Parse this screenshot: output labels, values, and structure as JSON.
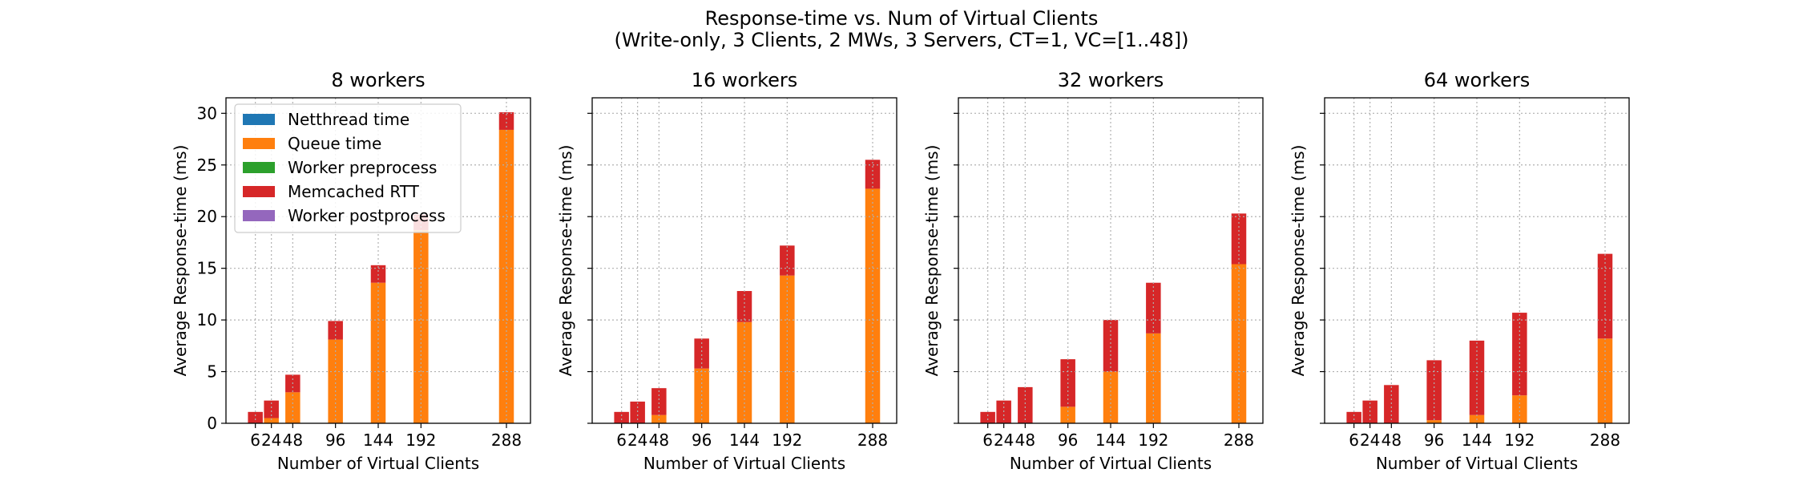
{
  "figure": {
    "title_line1": "Response-time vs. Num of Virtual Clients",
    "title_line2": "(Write-only, 3 Clients, 2 MWs, 3 Servers, CT=1, VC=[1..48])"
  },
  "colors": {
    "netthread": "#1f77b4",
    "queue": "#ff7f0e",
    "preprocess": "#2ca02c",
    "memcached": "#d62728",
    "postprocess": "#9467bd"
  },
  "chart_data": [
    {
      "type": "bar",
      "stacked": true,
      "title": "8 workers",
      "xlabel": "Number of Virtual Clients",
      "ylabel": "Average Response-time (ms)",
      "x": [
        6,
        24,
        48,
        96,
        144,
        192,
        288
      ],
      "x_tick_labels": [
        "6",
        "24",
        "48",
        "96",
        "144",
        "192",
        "288"
      ],
      "ylim": [
        0,
        31.5
      ],
      "yticks": [
        0,
        5,
        10,
        15,
        20,
        25,
        30
      ],
      "show_y_tick_labels": true,
      "grid": true,
      "legend": {
        "placement": "upper-left",
        "entries": [
          "Netthread time",
          "Queue time",
          "Worker preprocess",
          "Memcached RTT",
          "Worker postprocess"
        ]
      },
      "series": [
        {
          "name": "Netthread time",
          "values": [
            0.0,
            0.0,
            0.0,
            0.0,
            0.0,
            0.0,
            0.0
          ]
        },
        {
          "name": "Queue time",
          "values": [
            0.0,
            0.5,
            3.0,
            8.1,
            13.6,
            18.7,
            28.4
          ]
        },
        {
          "name": "Worker preprocess",
          "values": [
            0.0,
            0.0,
            0.0,
            0.0,
            0.0,
            0.0,
            0.0
          ]
        },
        {
          "name": "Memcached RTT",
          "values": [
            1.1,
            1.7,
            1.7,
            1.8,
            1.7,
            1.5,
            1.7
          ]
        },
        {
          "name": "Worker postprocess",
          "values": [
            0.0,
            0.0,
            0.0,
            0.0,
            0.0,
            0.0,
            0.0
          ]
        }
      ]
    },
    {
      "type": "bar",
      "stacked": true,
      "title": "16 workers",
      "xlabel": "Number of Virtual Clients",
      "ylabel": "Average Response-time (ms)",
      "x": [
        6,
        24,
        48,
        96,
        144,
        192,
        288
      ],
      "x_tick_labels": [
        "6",
        "24",
        "48",
        "96",
        "144",
        "192",
        "288"
      ],
      "ylim": [
        0,
        31.5
      ],
      "yticks": [
        0,
        5,
        10,
        15,
        20,
        25,
        30
      ],
      "show_y_tick_labels": false,
      "grid": true,
      "series": [
        {
          "name": "Netthread time",
          "values": [
            0.0,
            0.0,
            0.0,
            0.0,
            0.0,
            0.0,
            0.0
          ]
        },
        {
          "name": "Queue time",
          "values": [
            0.0,
            0.0,
            0.8,
            5.3,
            9.8,
            14.3,
            22.7
          ]
        },
        {
          "name": "Worker preprocess",
          "values": [
            0.0,
            0.0,
            0.0,
            0.0,
            0.0,
            0.0,
            0.0
          ]
        },
        {
          "name": "Memcached RTT",
          "values": [
            1.1,
            2.1,
            2.6,
            2.9,
            3.0,
            2.9,
            2.8
          ]
        },
        {
          "name": "Worker postprocess",
          "values": [
            0.0,
            0.0,
            0.0,
            0.0,
            0.0,
            0.0,
            0.0
          ]
        }
      ]
    },
    {
      "type": "bar",
      "stacked": true,
      "title": "32 workers",
      "xlabel": "Number of Virtual Clients",
      "ylabel": "Average Response-time (ms)",
      "x": [
        6,
        24,
        48,
        96,
        144,
        192,
        288
      ],
      "x_tick_labels": [
        "6",
        "24",
        "48",
        "96",
        "144",
        "192",
        "288"
      ],
      "ylim": [
        0,
        31.5
      ],
      "yticks": [
        0,
        5,
        10,
        15,
        20,
        25,
        30
      ],
      "show_y_tick_labels": false,
      "grid": true,
      "series": [
        {
          "name": "Netthread time",
          "values": [
            0.0,
            0.0,
            0.0,
            0.0,
            0.0,
            0.0,
            0.0
          ]
        },
        {
          "name": "Queue time",
          "values": [
            0.0,
            0.0,
            0.0,
            1.6,
            5.0,
            8.7,
            15.4
          ]
        },
        {
          "name": "Worker preprocess",
          "values": [
            0.0,
            0.0,
            0.0,
            0.0,
            0.0,
            0.0,
            0.0
          ]
        },
        {
          "name": "Memcached RTT",
          "values": [
            1.1,
            2.2,
            3.5,
            4.6,
            5.0,
            4.9,
            4.9
          ]
        },
        {
          "name": "Worker postprocess",
          "values": [
            0.0,
            0.0,
            0.0,
            0.0,
            0.0,
            0.0,
            0.0
          ]
        }
      ]
    },
    {
      "type": "bar",
      "stacked": true,
      "title": "64 workers",
      "xlabel": "Number of Virtual Clients",
      "ylabel": "Average Response-time (ms)",
      "x": [
        6,
        24,
        48,
        96,
        144,
        192,
        288
      ],
      "x_tick_labels": [
        "6",
        "24",
        "48",
        "96",
        "144",
        "192",
        "288"
      ],
      "ylim": [
        0,
        31.5
      ],
      "yticks": [
        0,
        5,
        10,
        15,
        20,
        25,
        30
      ],
      "show_y_tick_labels": false,
      "grid": true,
      "series": [
        {
          "name": "Netthread time",
          "values": [
            0.0,
            0.0,
            0.0,
            0.0,
            0.0,
            0.0,
            0.0
          ]
        },
        {
          "name": "Queue time",
          "values": [
            0.0,
            0.0,
            0.0,
            0.3,
            0.8,
            2.7,
            8.2
          ]
        },
        {
          "name": "Worker preprocess",
          "values": [
            0.0,
            0.0,
            0.0,
            0.0,
            0.0,
            0.0,
            0.0
          ]
        },
        {
          "name": "Memcached RTT",
          "values": [
            1.1,
            2.2,
            3.7,
            5.8,
            7.2,
            8.0,
            8.2
          ]
        },
        {
          "name": "Worker postprocess",
          "values": [
            0.0,
            0.0,
            0.0,
            0.0,
            0.0,
            0.0,
            0.0
          ]
        }
      ]
    }
  ]
}
